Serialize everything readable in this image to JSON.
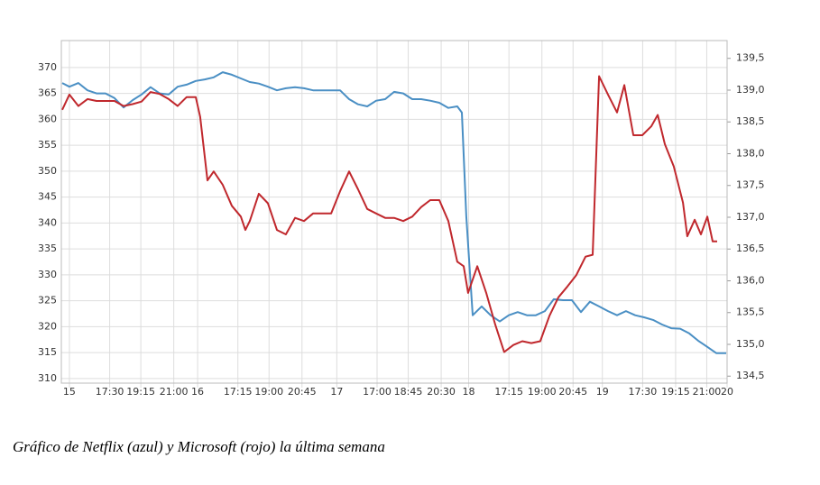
{
  "chart_data": {
    "type": "line",
    "xlim": [
      -0.44,
      35.91
    ],
    "ylim": [
      309.1,
      375.2
    ],
    "y2lim": [
      134.39,
      139.78
    ],
    "grid": true,
    "xticks": [
      {
        "value": 0,
        "label": "15"
      },
      {
        "value": 2.2,
        "label": "17:30"
      },
      {
        "value": 3.9,
        "label": "19:15"
      },
      {
        "value": 5.7,
        "label": "21:00"
      },
      {
        "value": 7.0,
        "label": "16"
      },
      {
        "value": 9.2,
        "label": "17:15"
      },
      {
        "value": 10.9,
        "label": "19:00"
      },
      {
        "value": 12.7,
        "label": "20:45"
      },
      {
        "value": 14.6,
        "label": "17"
      },
      {
        "value": 16.8,
        "label": "17:00"
      },
      {
        "value": 18.5,
        "label": "18:45"
      },
      {
        "value": 20.3,
        "label": "20:30"
      },
      {
        "value": 21.8,
        "label": "18"
      },
      {
        "value": 24.0,
        "label": "17:15"
      },
      {
        "value": 25.8,
        "label": "19:00"
      },
      {
        "value": 27.5,
        "label": "20:45"
      },
      {
        "value": 29.1,
        "label": "19"
      },
      {
        "value": 31.3,
        "label": "17:30"
      },
      {
        "value": 33.1,
        "label": "19:15"
      },
      {
        "value": 34.8,
        "label": "21:00"
      },
      {
        "value": 35.91,
        "label": "20"
      }
    ],
    "yticks": [
      310,
      315,
      320,
      325,
      330,
      335,
      340,
      345,
      350,
      355,
      360,
      365,
      370
    ],
    "y2ticks": [
      {
        "value": 134.5,
        "label": "134,5"
      },
      {
        "value": 135,
        "label": "135,0"
      },
      {
        "value": 135.5,
        "label": "135,5"
      },
      {
        "value": 136,
        "label": "136,0"
      },
      {
        "value": 136.5,
        "label": "136,5"
      },
      {
        "value": 137,
        "label": "137,0"
      },
      {
        "value": 137.5,
        "label": "137,5"
      },
      {
        "value": 138,
        "label": "138,0"
      },
      {
        "value": 138.5,
        "label": "138,5"
      },
      {
        "value": 139,
        "label": "139,0"
      },
      {
        "value": 139.5,
        "label": "139,5"
      }
    ],
    "series": [
      {
        "color": "#4a8fc4",
        "x": [
          -0.39,
          0,
          0.49,
          0.99,
          1.48,
          1.97,
          2.46,
          2.96,
          3.45,
          3.94,
          4.43,
          4.93,
          5.42,
          5.91,
          6.4,
          6.9,
          7.39,
          7.88,
          8.37,
          8.87,
          9.36,
          9.85,
          10.34,
          10.84,
          11.33,
          11.82,
          12.32,
          12.81,
          13.3,
          13.79,
          14.29,
          14.78,
          15.27,
          15.76,
          16.26,
          16.75,
          17.24,
          17.73,
          18.23,
          18.72,
          19.21,
          19.7,
          20.2,
          20.69,
          21.18,
          21.43,
          21.67,
          22.02,
          22.51,
          23.0,
          23.5,
          23.99,
          24.48,
          24.98,
          25.47,
          25.96,
          26.45,
          26.95,
          27.44,
          27.93,
          28.42,
          28.92,
          29.41,
          29.9,
          30.39,
          30.89,
          31.38,
          31.87,
          32.36,
          32.86,
          33.35,
          33.84,
          34.33,
          34.83,
          35.32,
          35.86
        ],
        "values": [
          367,
          366.3,
          367,
          365.6,
          365,
          365,
          364.1,
          362.3,
          363.7,
          364.8,
          366.2,
          365,
          364.8,
          366.3,
          366.7,
          367.4,
          367.7,
          368.1,
          369.1,
          368.6,
          367.9,
          367.2,
          366.9,
          366.3,
          365.6,
          366,
          366.2,
          366,
          365.6,
          365.6,
          365.6,
          365.6,
          363.9,
          362.9,
          362.5,
          363.6,
          363.9,
          365.3,
          365,
          363.9,
          363.9,
          363.6,
          363.2,
          362.2,
          362.5,
          361.3,
          341.3,
          322.2,
          323.9,
          322.2,
          321,
          322.2,
          322.8,
          322.2,
          322.2,
          323,
          325.3,
          325.1,
          325.1,
          322.8,
          324.8,
          323.9,
          323,
          322.2,
          323,
          322.2,
          321.8,
          321.3,
          320.4,
          319.7,
          319.6,
          318.7,
          317.3,
          316.1,
          314.9,
          314.9
        ]
      },
      {
        "color": "#c0282d",
        "axis": "y2",
        "x": [
          -0.39,
          0,
          0.49,
          0.99,
          1.48,
          1.97,
          2.46,
          2.96,
          3.45,
          3.94,
          4.43,
          4.93,
          5.42,
          5.91,
          6.4,
          6.9,
          7.14,
          7.54,
          7.88,
          8.37,
          8.87,
          9.36,
          9.61,
          9.85,
          10.34,
          10.84,
          11.33,
          11.82,
          12.32,
          12.81,
          13.3,
          13.79,
          14.29,
          14.78,
          15.27,
          15.76,
          16.26,
          16.75,
          17.24,
          17.73,
          18.23,
          18.72,
          19.21,
          19.7,
          20.2,
          20.69,
          21.18,
          21.53,
          21.77,
          22.27,
          22.76,
          23.25,
          23.74,
          24.24,
          24.73,
          25.22,
          25.71,
          26.21,
          26.7,
          27.19,
          27.68,
          28.18,
          28.57,
          28.92,
          29.41,
          29.9,
          30.3,
          30.79,
          31.28,
          31.77,
          32.12,
          32.51,
          33.0,
          33.5,
          33.74,
          34.14,
          34.48,
          34.83,
          35.12,
          35.37
        ],
        "values": [
          138.69,
          138.93,
          138.75,
          138.86,
          138.83,
          138.83,
          138.83,
          138.75,
          138.78,
          138.82,
          138.97,
          138.94,
          138.86,
          138.75,
          138.89,
          138.89,
          138.58,
          137.58,
          137.72,
          137.51,
          137.18,
          137.01,
          136.8,
          136.94,
          137.37,
          137.22,
          136.8,
          136.73,
          136.99,
          136.94,
          137.06,
          137.06,
          137.06,
          137.41,
          137.72,
          137.44,
          137.13,
          137.06,
          136.99,
          136.99,
          136.94,
          137.01,
          137.16,
          137.27,
          137.27,
          136.94,
          136.3,
          136.23,
          135.81,
          136.23,
          135.81,
          135.31,
          134.88,
          134.99,
          135.05,
          135.02,
          135.05,
          135.45,
          135.74,
          135.91,
          136.09,
          136.38,
          136.41,
          139.22,
          138.93,
          138.65,
          139.08,
          138.29,
          138.29,
          138.43,
          138.61,
          138.15,
          137.8,
          137.23,
          136.7,
          136.96,
          136.73,
          137.01,
          136.62,
          136.62
        ]
      }
    ]
  },
  "caption": "Gráfico de Netflix (azul) y Microsoft (rojo) la última semana"
}
